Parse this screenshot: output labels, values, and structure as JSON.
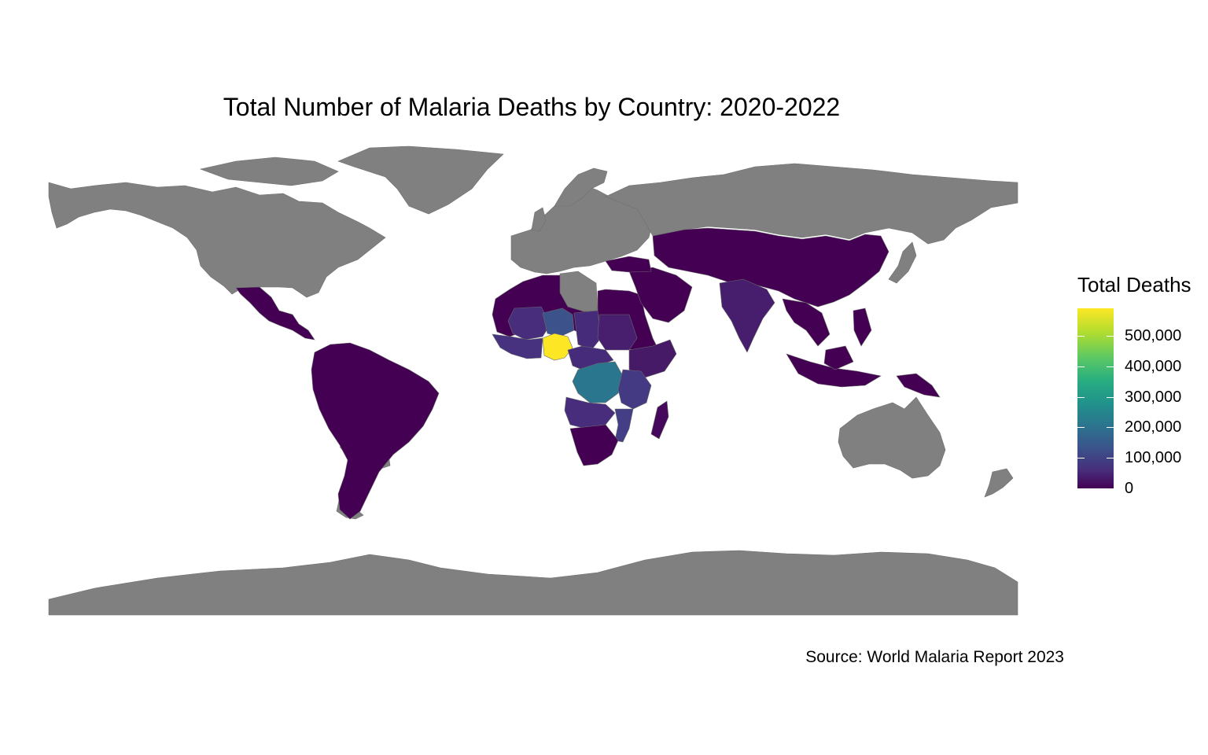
{
  "title": "Total Number of Malaria Deaths by Country: 2020-2022",
  "caption": "Source: World Malaria Report 2023",
  "legend": {
    "title": "Total Deaths",
    "min": 0,
    "max": 590000,
    "ticks": [
      {
        "value": 0,
        "label": "0"
      },
      {
        "value": 100000,
        "label": "100,000"
      },
      {
        "value": 200000,
        "label": "200,000"
      },
      {
        "value": 300000,
        "label": "300,000"
      },
      {
        "value": 400000,
        "label": "400,000"
      },
      {
        "value": 500000,
        "label": "500,000"
      }
    ],
    "palette": "viridis"
  },
  "colors": {
    "no_data": "#808080",
    "low": "#440154",
    "mid": "#21918c",
    "high": "#fde725",
    "background": "#ffffff"
  },
  "chart_data": {
    "type": "choropleth",
    "value_field": "Total Deaths",
    "regions": [
      {
        "name": "Nigeria",
        "value": 580000
      },
      {
        "name": "Democratic Republic of the Congo",
        "value": 250000
      },
      {
        "name": "Niger",
        "value": 95000
      },
      {
        "name": "Tanzania",
        "value": 80000
      },
      {
        "name": "Mozambique",
        "value": 60000
      },
      {
        "name": "Angola",
        "value": 45000
      },
      {
        "name": "Uganda",
        "value": 50000
      },
      {
        "name": "Burkina Faso",
        "value": 55000
      },
      {
        "name": "Mali",
        "value": 45000
      },
      {
        "name": "Chad",
        "value": 35000
      },
      {
        "name": "Cameroon",
        "value": 35000
      },
      {
        "name": "Sudan",
        "value": 25000
      },
      {
        "name": "Ethiopia",
        "value": 15000
      },
      {
        "name": "Kenya",
        "value": 35000
      },
      {
        "name": "India",
        "value": 25000
      }
    ],
    "no_data_regions": [
      "North America (US/Canada)",
      "Europe",
      "Russia",
      "Australia",
      "Antarctica",
      "Greenland",
      "Libya",
      "Argentina",
      "Chile",
      "Uruguay"
    ]
  }
}
